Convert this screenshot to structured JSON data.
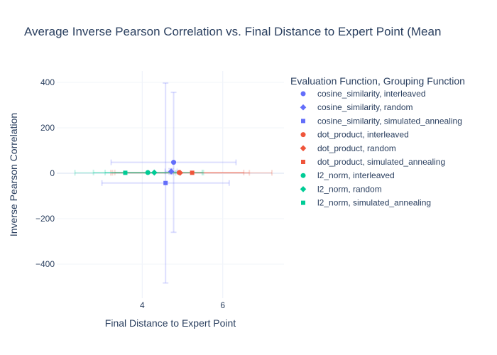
{
  "chart_data": {
    "type": "scatter",
    "title": "Average Inverse Pearson Correlation vs. Final Distance to Expert Point (Mean",
    "xlabel": "Final Distance to Expert Point",
    "ylabel": "Inverse Pearson Correlation",
    "xlim": [
      1.88,
      7.52
    ],
    "ylim": [
      -550,
      450
    ],
    "x_ticks": [
      4,
      6
    ],
    "y_ticks": [
      400,
      200,
      0,
      -200,
      -400
    ],
    "y_tick_labels": [
      "400",
      "200",
      "0",
      "−200",
      "−400"
    ],
    "grid": true,
    "legend_title": "Evaluation Function, Grouping Function",
    "legend_position": "right",
    "series": [
      {
        "name": "cosine_similarity, interleaved",
        "symbol": "circle",
        "color": "#636efa",
        "points": [
          {
            "x": 4.78,
            "y": 48,
            "x_err": 1.55,
            "y_err": 308
          }
        ]
      },
      {
        "name": "cosine_similarity, random",
        "symbol": "diamond",
        "color": "#636efa",
        "points": [
          {
            "x": 4.72,
            "y": 8,
            "x_err": 0.15,
            "y_err": 12
          }
        ]
      },
      {
        "name": "cosine_similarity, simulated_annealing",
        "symbol": "square",
        "color": "#636efa",
        "points": [
          {
            "x": 4.58,
            "y": -43,
            "x_err": 1.58,
            "y_err": 440
          }
        ]
      },
      {
        "name": "dot_product, interleaved",
        "symbol": "circle",
        "color": "#ef553b",
        "points": [
          {
            "x": 4.92,
            "y": 3,
            "x_err": 1.6,
            "y_err": 0
          }
        ]
      },
      {
        "name": "dot_product, random",
        "symbol": "diamond",
        "color": "#ef553b",
        "points": [
          {
            "x": 4.94,
            "y": 2,
            "x_err": 1.72,
            "y_err": 0
          }
        ]
      },
      {
        "name": "dot_product, simulated_annealing",
        "symbol": "square",
        "color": "#ef553b",
        "points": [
          {
            "x": 5.24,
            "y": 2,
            "x_err": 1.98,
            "y_err": 0
          }
        ]
      },
      {
        "name": "l2_norm, interleaved",
        "symbol": "circle",
        "color": "#00cc96",
        "points": [
          {
            "x": 4.14,
            "y": 3,
            "x_err": 1.35,
            "y_err": 0
          }
        ]
      },
      {
        "name": "l2_norm, random",
        "symbol": "diamond",
        "color": "#00cc96",
        "points": [
          {
            "x": 4.3,
            "y": 3,
            "x_err": 1.22,
            "y_err": 0
          }
        ]
      },
      {
        "name": "l2_norm, simulated_annealing",
        "symbol": "square",
        "color": "#00cc96",
        "points": [
          {
            "x": 3.58,
            "y": 2,
            "x_err": 1.25,
            "y_err": 0
          }
        ]
      }
    ]
  }
}
